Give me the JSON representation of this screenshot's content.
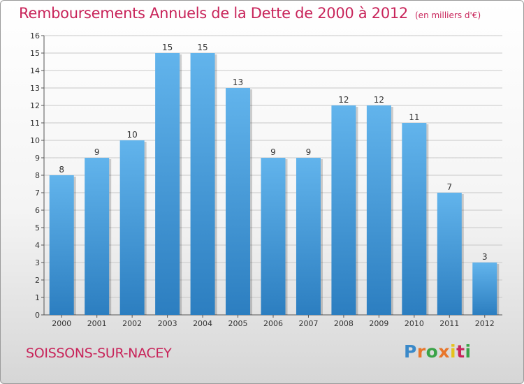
{
  "header": {
    "title": "Remboursements Annuels de la Dette de 2000 à 2012",
    "unit": "(en milliers d'€)"
  },
  "footer": {
    "place": "SOISSONS-SUR-NACEY",
    "logo": [
      "P",
      "r",
      "o",
      "x",
      "i",
      "t",
      "i"
    ]
  },
  "colors": {
    "title": "#c8245a",
    "bar_top": "#62b4ec",
    "bar_bottom": "#2c7ec0",
    "grid": "#c8c8c8"
  },
  "chart_data": {
    "type": "bar",
    "title": "Remboursements Annuels de la Dette de 2000 à 2012",
    "categories": [
      "2000",
      "2001",
      "2002",
      "2003",
      "2004",
      "2005",
      "2006",
      "2007",
      "2008",
      "2009",
      "2010",
      "2011",
      "2012"
    ],
    "values": [
      8,
      9,
      10,
      15,
      15,
      13,
      9,
      9,
      12,
      12,
      11,
      7,
      3
    ],
    "ylim": [
      0,
      16
    ],
    "yticks": [
      0,
      1,
      2,
      3,
      4,
      5,
      6,
      7,
      8,
      9,
      10,
      11,
      12,
      13,
      14,
      15,
      16
    ],
    "grid": true,
    "data_labels": true
  }
}
